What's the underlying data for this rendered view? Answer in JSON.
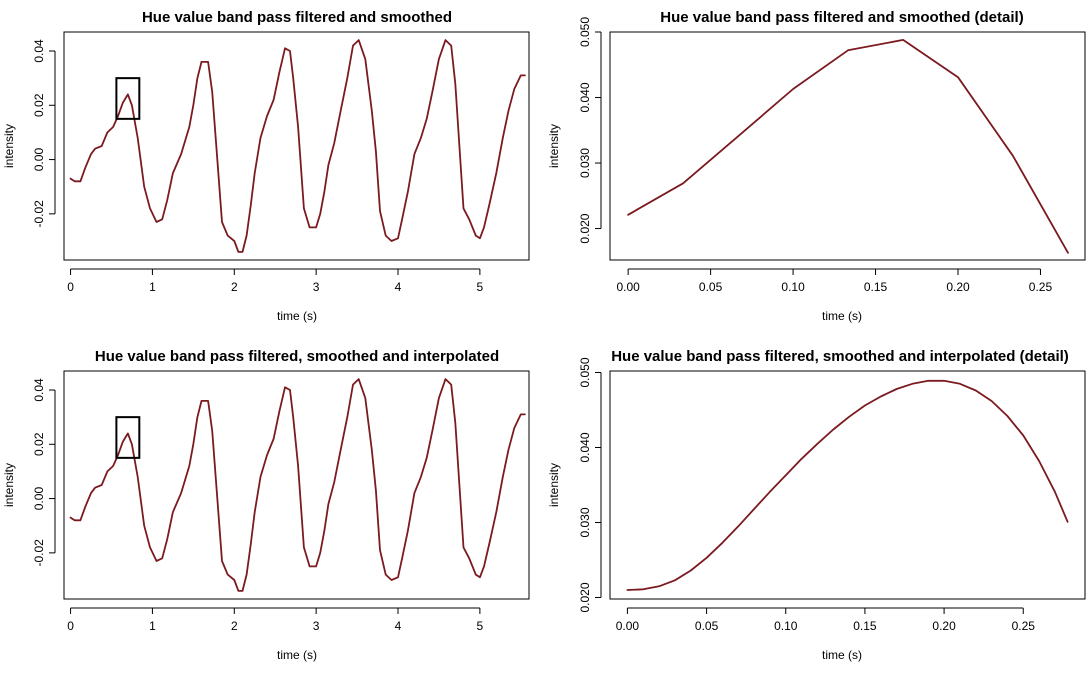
{
  "colors": {
    "series": "#7b1a1f",
    "axis": "#000000"
  },
  "chart_data": [
    {
      "type": "line",
      "title": "Hue value band pass filtered and smoothed",
      "xlabel": "time (s)",
      "ylabel": "intensity",
      "xlim": [
        -0.08,
        5.6
      ],
      "ylim": [
        -0.037,
        0.047
      ],
      "xticks": [
        0,
        1,
        2,
        3,
        4,
        5
      ],
      "xtick_labels": [
        "0",
        "1",
        "2",
        "3",
        "4",
        "5"
      ],
      "yticks": [
        -0.02,
        0.0,
        0.02,
        0.04
      ],
      "ytick_labels": [
        "-0.02",
        "0.00",
        "0.02",
        "0.04"
      ],
      "grid": false,
      "highlight_box": {
        "x": [
          0.56,
          0.84
        ],
        "y": [
          0.015,
          0.03
        ]
      },
      "series": [
        {
          "x": [
            0,
            0.05,
            0.12,
            0.18,
            0.25,
            0.3,
            0.38,
            0.45,
            0.52,
            0.58,
            0.64,
            0.7,
            0.75,
            0.82,
            0.9,
            0.97,
            1.05,
            1.12,
            1.18,
            1.25,
            1.35,
            1.45,
            1.5,
            1.55,
            1.6,
            1.68,
            1.73,
            1.78,
            1.85,
            1.92,
            2.0,
            2.05,
            2.1,
            2.15,
            2.2,
            2.25,
            2.32,
            2.4,
            2.48,
            2.55,
            2.62,
            2.68,
            2.72,
            2.78,
            2.85,
            2.92,
            3.0,
            3.05,
            3.1,
            3.15,
            3.22,
            3.3,
            3.38,
            3.45,
            3.52,
            3.6,
            3.68,
            3.73,
            3.78,
            3.85,
            3.92,
            4.0,
            4.05,
            4.12,
            4.2,
            4.28,
            4.35,
            4.42,
            4.5,
            4.58,
            4.65,
            4.7,
            4.75,
            4.8,
            4.87,
            4.95,
            5.0,
            5.05,
            5.12,
            5.2,
            5.28,
            5.35,
            5.42,
            5.5,
            5.55
          ],
          "y": [
            -0.007,
            -0.008,
            -0.008,
            -0.003,
            0.002,
            0.004,
            0.005,
            0.01,
            0.012,
            0.016,
            0.021,
            0.024,
            0.02,
            0.008,
            -0.01,
            -0.018,
            -0.023,
            -0.022,
            -0.015,
            -0.005,
            0.002,
            0.012,
            0.02,
            0.03,
            0.036,
            0.036,
            0.025,
            0.005,
            -0.023,
            -0.028,
            -0.03,
            -0.034,
            -0.034,
            -0.028,
            -0.017,
            -0.005,
            0.008,
            0.016,
            0.022,
            0.032,
            0.041,
            0.04,
            0.03,
            0.012,
            -0.018,
            -0.025,
            -0.025,
            -0.02,
            -0.012,
            -0.002,
            0.006,
            0.018,
            0.03,
            0.042,
            0.044,
            0.037,
            0.018,
            0.003,
            -0.019,
            -0.028,
            -0.03,
            -0.029,
            -0.022,
            -0.012,
            0.002,
            0.008,
            0.015,
            0.025,
            0.037,
            0.044,
            0.042,
            0.028,
            0.005,
            -0.018,
            -0.022,
            -0.028,
            -0.029,
            -0.025,
            -0.016,
            -0.005,
            0.008,
            0.018,
            0.026,
            0.031,
            0.031
          ]
        }
      ]
    },
    {
      "type": "line",
      "title": "Hue value band pass filtered and smoothed (detail)",
      "xlabel": "time (s)",
      "ylabel": "intensity",
      "xlim": [
        -0.011,
        0.277
      ],
      "ylim": [
        0.0152,
        0.05
      ],
      "xticks": [
        0,
        0.05,
        0.1,
        0.15,
        0.2,
        0.25
      ],
      "xtick_labels": [
        "0.00",
        "0.05",
        "0.10",
        "0.15",
        "0.20",
        "0.25"
      ],
      "yticks": [
        0.02,
        0.03,
        0.04,
        0.05
      ],
      "ytick_labels": [
        "0.020",
        "0.030",
        "0.040",
        "0.050"
      ],
      "grid": false,
      "series": [
        {
          "x": [
            0,
            0.0333,
            0.0667,
            0.1,
            0.1333,
            0.1667,
            0.2,
            0.2333,
            0.2667
          ],
          "y": [
            0.0221,
            0.0269,
            0.0341,
            0.0413,
            0.0472,
            0.0488,
            0.0431,
            0.0311,
            0.0163
          ]
        }
      ]
    },
    {
      "type": "line",
      "title": "Hue value band pass filtered, smoothed and interpolated",
      "xlabel": "time (s)",
      "ylabel": "intensity",
      "xlim": [
        -0.08,
        5.6
      ],
      "ylim": [
        -0.037,
        0.047
      ],
      "xticks": [
        0,
        1,
        2,
        3,
        4,
        5
      ],
      "xtick_labels": [
        "0",
        "1",
        "2",
        "3",
        "4",
        "5"
      ],
      "yticks": [
        -0.02,
        0.0,
        0.02,
        0.04
      ],
      "ytick_labels": [
        "-0.02",
        "0.00",
        "0.02",
        "0.04"
      ],
      "grid": false,
      "highlight_box": {
        "x": [
          0.56,
          0.84
        ],
        "y": [
          0.015,
          0.03
        ]
      },
      "series": [
        {
          "x": [
            0,
            0.05,
            0.12,
            0.18,
            0.25,
            0.3,
            0.38,
            0.45,
            0.52,
            0.58,
            0.64,
            0.7,
            0.75,
            0.82,
            0.9,
            0.97,
            1.05,
            1.12,
            1.18,
            1.25,
            1.35,
            1.45,
            1.5,
            1.55,
            1.6,
            1.68,
            1.73,
            1.78,
            1.85,
            1.92,
            2.0,
            2.05,
            2.1,
            2.15,
            2.2,
            2.25,
            2.32,
            2.4,
            2.48,
            2.55,
            2.62,
            2.68,
            2.72,
            2.78,
            2.85,
            2.92,
            3.0,
            3.05,
            3.1,
            3.15,
            3.22,
            3.3,
            3.38,
            3.45,
            3.52,
            3.6,
            3.68,
            3.73,
            3.78,
            3.85,
            3.92,
            4.0,
            4.05,
            4.12,
            4.2,
            4.28,
            4.35,
            4.42,
            4.5,
            4.58,
            4.65,
            4.7,
            4.75,
            4.8,
            4.87,
            4.95,
            5.0,
            5.05,
            5.12,
            5.2,
            5.28,
            5.35,
            5.42,
            5.5,
            5.55
          ],
          "y": [
            -0.007,
            -0.008,
            -0.008,
            -0.003,
            0.002,
            0.004,
            0.005,
            0.01,
            0.012,
            0.016,
            0.021,
            0.024,
            0.02,
            0.008,
            -0.01,
            -0.018,
            -0.023,
            -0.022,
            -0.015,
            -0.005,
            0.002,
            0.012,
            0.02,
            0.03,
            0.036,
            0.036,
            0.025,
            0.005,
            -0.023,
            -0.028,
            -0.03,
            -0.034,
            -0.034,
            -0.028,
            -0.017,
            -0.005,
            0.008,
            0.016,
            0.022,
            0.032,
            0.041,
            0.04,
            0.03,
            0.012,
            -0.018,
            -0.025,
            -0.025,
            -0.02,
            -0.012,
            -0.002,
            0.006,
            0.018,
            0.03,
            0.042,
            0.044,
            0.037,
            0.018,
            0.003,
            -0.019,
            -0.028,
            -0.03,
            -0.029,
            -0.022,
            -0.012,
            0.002,
            0.008,
            0.015,
            0.025,
            0.037,
            0.044,
            0.042,
            0.028,
            0.005,
            -0.018,
            -0.022,
            -0.028,
            -0.029,
            -0.025,
            -0.016,
            -0.005,
            0.008,
            0.018,
            0.026,
            0.031,
            0.031
          ]
        }
      ]
    },
    {
      "type": "line",
      "title": "Hue value band pass filtered, smoothed and interpolated (detail)",
      "xlabel": "time (s)",
      "ylabel": "intensity",
      "xlim": [
        -0.011,
        0.289
      ],
      "ylim": [
        0.0198,
        0.0502
      ],
      "xticks": [
        0,
        0.05,
        0.1,
        0.15,
        0.2,
        0.25
      ],
      "xtick_labels": [
        "0.00",
        "0.05",
        "0.10",
        "0.15",
        "0.20",
        "0.25"
      ],
      "yticks": [
        0.02,
        0.03,
        0.04,
        0.05
      ],
      "ytick_labels": [
        "0.020",
        "0.030",
        "0.040",
        "0.050"
      ],
      "grid": false,
      "series": [
        {
          "x": [
            0,
            0.01,
            0.02,
            0.03,
            0.04,
            0.05,
            0.06,
            0.07,
            0.08,
            0.09,
            0.1,
            0.11,
            0.12,
            0.13,
            0.14,
            0.15,
            0.16,
            0.17,
            0.18,
            0.19,
            0.2,
            0.21,
            0.22,
            0.23,
            0.24,
            0.25,
            0.26,
            0.27,
            0.278
          ],
          "y": [
            0.021,
            0.0211,
            0.0215,
            0.0223,
            0.0236,
            0.0253,
            0.0273,
            0.0295,
            0.0318,
            0.0341,
            0.0363,
            0.0385,
            0.0405,
            0.0424,
            0.0441,
            0.0456,
            0.0468,
            0.0478,
            0.0485,
            0.0489,
            0.0489,
            0.0485,
            0.0476,
            0.0462,
            0.0442,
            0.0416,
            0.0382,
            0.0341,
            0.0301
          ]
        }
      ]
    }
  ]
}
